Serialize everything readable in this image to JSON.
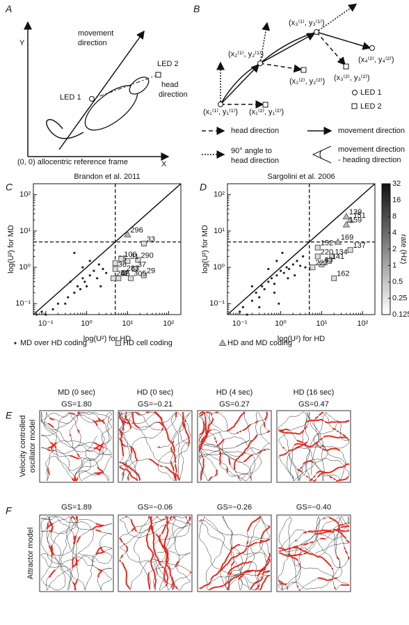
{
  "panel_a": {
    "letter": "A",
    "y_axis": "Y",
    "x_axis": "X",
    "movement": [
      "movement",
      "direction"
    ],
    "led2": "LED 2",
    "head": [
      "head",
      "direction"
    ],
    "led1": "LED 1",
    "origin": "(0, 0) allocentric reference frame"
  },
  "panel_b": {
    "letter": "B",
    "points": [
      "(x₁⁽¹⁾, y₁⁽¹⁾)",
      "(x₁⁽²⁾, y₁⁽²⁾)",
      "(x₂⁽¹⁾, y₂⁽¹⁾)",
      "(x₂⁽²⁾, y₂⁽²⁾)",
      "(x₃⁽¹⁾, y₃⁽¹⁾)",
      "(x₃⁽²⁾, y₃⁽²⁾)",
      "(x₄⁽²⁾, y₄⁽²⁾)"
    ],
    "led1": "LED 1",
    "led2": "LED 2",
    "legend_head": "head direction",
    "legend_move": "movement direction",
    "legend_perp": [
      "90° angle to",
      "head direction"
    ],
    "legend_angle": [
      "movement direction",
      "- heading direction"
    ]
  },
  "chart_data": [
    {
      "type": "scatter",
      "letter": "C",
      "title": "Brandon et al. 2011",
      "x_label": "log(U²) for HD",
      "y_label": "log(U²) for MD",
      "xlim": [
        0.05,
        200
      ],
      "ylim": [
        0.05,
        200
      ],
      "log_scale": true,
      "diagonal": true,
      "ref_x": 5,
      "ref_y": 5,
      "xticks": [
        {
          "value": 0.1,
          "label": "10⁻¹"
        },
        {
          "value": 1,
          "label": "10⁰"
        },
        {
          "value": 10,
          "label": "10¹"
        },
        {
          "value": 100,
          "label": "10²"
        }
      ],
      "yticks": [
        {
          "value": 0.1,
          "label": "10⁻¹"
        },
        {
          "value": 1,
          "label": "10⁰"
        },
        {
          "value": 10,
          "label": "10¹"
        },
        {
          "value": 100,
          "label": "10²"
        }
      ],
      "series": [
        {
          "name": "MD over HD coding",
          "marker": "dot",
          "color": "#222",
          "x": [
            0.06,
            0.08,
            0.1,
            0.2,
            0.35,
            0.4,
            0.5,
            0.6,
            0.7,
            0.8,
            0.9,
            1,
            1.2,
            1.5,
            1.8,
            2,
            2.5,
            3,
            1.2,
            0.8,
            0.5,
            2.2,
            0.3,
            0.15
          ],
          "y": [
            0.05,
            0.06,
            0.05,
            0.1,
            0.15,
            0.4,
            0.2,
            0.3,
            0.25,
            0.5,
            0.4,
            0.3,
            0.6,
            0.8,
            0.5,
            1.2,
            0.9,
            0.7,
            1.5,
            1.0,
            2.5,
            0.3,
            0.1,
            0.07
          ]
        },
        {
          "name": "HD cell coding",
          "marker": "square",
          "color": "#555",
          "x": [
            25,
            18,
            10,
            15,
            8,
            25,
            12,
            6,
            4.5,
            5,
            5,
            7
          ],
          "y": [
            4.5,
            1.6,
            1.5,
            0.9,
            0.7,
            0.6,
            0.5,
            0.5,
            0.5,
            0.9,
            1.3,
            1.7
          ],
          "labels": [
            "33",
            "290",
            "31",
            "37",
            "283",
            "29",
            "305",
            "96",
            "242",
            "36",
            "55",
            "106"
          ]
        },
        {
          "name": "HD and MD coding",
          "marker": "triangle",
          "color": "#666",
          "x": [
            10
          ],
          "y": [
            8
          ],
          "labels": [
            "296"
          ]
        }
      ]
    },
    {
      "type": "scatter",
      "letter": "D",
      "title": "Sargolini et al. 2006",
      "x_label": "log(U²) for HD",
      "y_label": "log(U²) for MD",
      "xlim": [
        0.05,
        200
      ],
      "ylim": [
        0.05,
        200
      ],
      "log_scale": true,
      "diagonal": true,
      "ref_x": 5,
      "ref_y": 5,
      "xticks": [
        {
          "value": 0.1,
          "label": "10⁻¹"
        },
        {
          "value": 1,
          "label": "10⁰"
        },
        {
          "value": 10,
          "label": "10¹"
        },
        {
          "value": 100,
          "label": "10²"
        }
      ],
      "yticks": [
        {
          "value": 0.1,
          "label": "10⁻¹"
        },
        {
          "value": 1,
          "label": "10⁰"
        },
        {
          "value": 10,
          "label": "10¹"
        },
        {
          "value": 100,
          "label": "10²"
        }
      ],
      "colorbar": {
        "label": "rate (Hz)",
        "clim": [
          0.125,
          32
        ],
        "ticks": [
          0.125,
          0.25,
          0.5,
          1,
          2,
          4,
          8,
          16,
          32
        ]
      },
      "series": [
        {
          "marker": "dot",
          "color": "#222",
          "x": [
            0.1,
            0.12,
            0.15,
            0.2,
            0.25,
            0.3,
            0.35,
            0.4,
            0.5,
            0.6,
            0.7,
            0.8,
            1,
            1.2,
            1.4,
            1.6,
            2,
            2.5,
            3,
            3.5,
            0.5,
            0.8,
            1.5,
            2.2,
            0.3,
            0.7,
            1.1,
            4,
            0.2,
            0.9
          ],
          "y": [
            0.06,
            0.08,
            0.05,
            0.12,
            0.2,
            0.15,
            0.3,
            0.25,
            0.4,
            0.5,
            0.35,
            0.6,
            0.8,
            0.7,
            1.0,
            0.9,
            1.2,
            1.5,
            1.1,
            2.0,
            0.9,
            1.5,
            0.5,
            0.6,
            0.08,
            0.2,
            2.5,
            1.0,
            0.3,
            0.1
          ]
        },
        {
          "marker": "square",
          "color": "#555",
          "x": [
            8,
            8,
            18,
            15,
            50,
            10,
            6,
            20
          ],
          "y": [
            3.5,
            2,
            2,
            1.5,
            3,
            1.2,
            1.0,
            0.5
          ],
          "labels": [
            "152",
            "220",
            "134",
            "141",
            "137",
            "63",
            "222",
            "162"
          ]
        },
        {
          "marker": "triangle",
          "color": "#666",
          "x": [
            40,
            50,
            40,
            25
          ],
          "y": [
            25,
            20,
            15,
            5
          ],
          "labels": [
            "139",
            "151",
            "159",
            "169"
          ]
        }
      ]
    }
  ],
  "panel_e": {
    "letter": "E",
    "model": [
      "Velocity controlled",
      "oscillator model"
    ],
    "columns": [
      {
        "title": "MD (0 sec)",
        "gs": "GS=1.80"
      },
      {
        "title": "HD (0 sec)",
        "gs": "GS=−0.21"
      },
      {
        "title": "HD (4 sec)",
        "gs": "GS=0.27"
      },
      {
        "title": "HD (16 sec)",
        "gs": "GS=0.47"
      }
    ]
  },
  "panel_f": {
    "letter": "F",
    "model": "Attractor model",
    "columns": [
      {
        "gs": "GS=1.89"
      },
      {
        "gs": "GS=−0.06"
      },
      {
        "gs": "GS=−0.26"
      },
      {
        "gs": "GS=−0.40"
      }
    ]
  }
}
